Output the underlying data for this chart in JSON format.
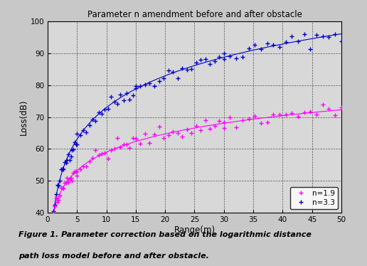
{
  "title": "Parameter n amendment before and after obstacle",
  "xlabel": "Range(m)",
  "ylabel": "Loss(dB)",
  "xlim": [
    0,
    50
  ],
  "ylim": [
    40,
    100
  ],
  "xticks": [
    0,
    5,
    10,
    15,
    20,
    25,
    30,
    35,
    40,
    45,
    50
  ],
  "yticks": [
    40,
    50,
    60,
    70,
    80,
    90,
    100
  ],
  "fig_bg_color": "#c8c8c8",
  "plot_bg_color": "#d8d8d8",
  "n_upper": 3.3,
  "n_lower": 1.9,
  "d0": 1.0,
  "PL0": 40.0,
  "color_upper": "#0000cc",
  "color_lower": "#ff00ff",
  "legend_labels": [
    "n=1.9",
    "n=3.3"
  ],
  "marker": "+",
  "markersize": 4,
  "markeredgewidth": 1.0,
  "caption_line1": "Figure 1. Parameter correction based on the logarithmic distance",
  "caption_line2": "path loss model before and after obstacle."
}
